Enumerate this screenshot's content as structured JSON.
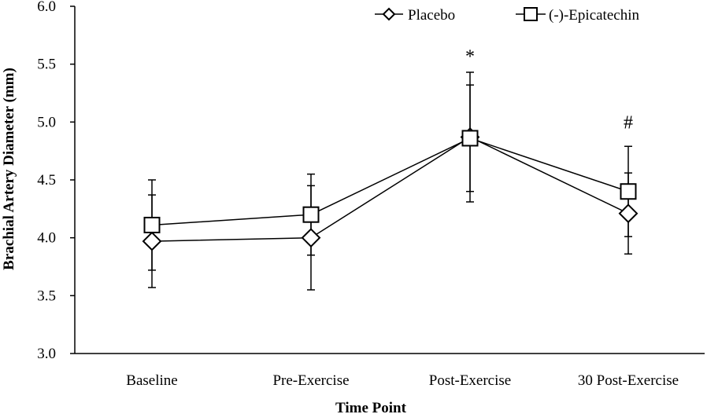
{
  "chart_data": {
    "type": "line",
    "title": "",
    "xlabel": "Time Point",
    "ylabel": "Brachial Artery Diameter (mm)",
    "categories": [
      "Baseline",
      "Pre-Exercise",
      "Post-Exercise",
      "30 Post-Exercise"
    ],
    "ylim": [
      3.0,
      6.0
    ],
    "yticks": [
      "3.0",
      "3.5",
      "4.0",
      "4.5",
      "5.0",
      "5.5",
      "6.0"
    ],
    "grid": false,
    "legend_position": "top-right",
    "series": [
      {
        "name": "Placebo",
        "marker": "diamond",
        "values": [
          3.97,
          4.0,
          4.87,
          4.21
        ],
        "error_upper": [
          0.4,
          0.45,
          0.56,
          0.35
        ],
        "error_lower": [
          0.4,
          0.45,
          0.56,
          0.35
        ]
      },
      {
        "name": "(-)-Epicatechin",
        "marker": "square",
        "values": [
          4.11,
          4.2,
          4.86,
          4.4
        ],
        "error_upper": [
          0.39,
          0.35,
          0.46,
          0.39
        ],
        "error_lower": [
          0.39,
          0.35,
          0.46,
          0.39
        ]
      }
    ],
    "annotations": [
      {
        "text": "*",
        "category": "Post-Exercise",
        "y": 5.57
      },
      {
        "text": "#",
        "category": "30 Post-Exercise",
        "y": 5.0
      }
    ]
  }
}
